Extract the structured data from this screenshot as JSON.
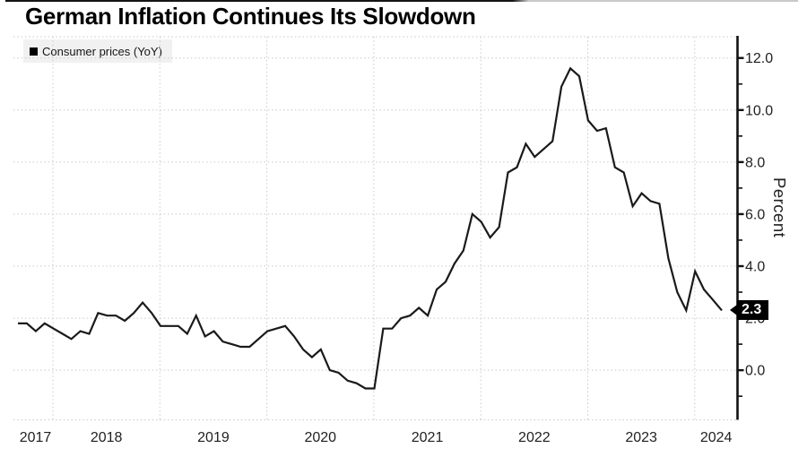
{
  "title": "German Inflation Continues Its Slowdown",
  "legend": {
    "label": "Consumer prices (YoY)",
    "swatch_color": "#000000"
  },
  "y_axis": {
    "title": "Percent",
    "tick_labels": [
      "0.0",
      "2.0",
      "4.0",
      "6.0",
      "8.0",
      "10.0",
      "12.0"
    ],
    "tick_values": [
      0,
      2,
      4,
      6,
      8,
      10,
      12
    ],
    "minor_tick_values": [
      -1,
      1,
      3,
      5,
      7,
      9,
      11
    ]
  },
  "x_axis": {
    "tick_labels": [
      "2017",
      "2018",
      "2019",
      "2020",
      "2021",
      "2022",
      "2023",
      "2024"
    ]
  },
  "flash_label": {
    "value": "2.3",
    "bg_color": "#000000",
    "text_color": "#ffffff"
  },
  "colors": {
    "line": "#1a1a1a",
    "grid": "#c9c9c9",
    "axis": "#111111",
    "label": "#1f1f1f",
    "legend_bg": "#f1f1f1"
  },
  "chart_data": {
    "type": "line",
    "title": "German Inflation Continues Its Slowdown",
    "series_name": "Consumer prices (YoY)",
    "ylabel": "Percent",
    "ylim": [
      -1.7,
      12.8
    ],
    "grid": "dotted",
    "legend_position": "top-left",
    "last_value_flag": 2.3,
    "x": [
      "2017-08",
      "2017-09",
      "2017-10",
      "2017-11",
      "2017-12",
      "2018-01",
      "2018-02",
      "2018-03",
      "2018-04",
      "2018-05",
      "2018-06",
      "2018-07",
      "2018-08",
      "2018-09",
      "2018-10",
      "2018-11",
      "2018-12",
      "2019-01",
      "2019-02",
      "2019-03",
      "2019-04",
      "2019-05",
      "2019-06",
      "2019-07",
      "2019-08",
      "2019-09",
      "2019-10",
      "2019-11",
      "2019-12",
      "2020-01",
      "2020-02",
      "2020-03",
      "2020-04",
      "2020-05",
      "2020-06",
      "2020-07",
      "2020-08",
      "2020-09",
      "2020-10",
      "2020-11",
      "2020-12",
      "2021-01",
      "2021-02",
      "2021-03",
      "2021-04",
      "2021-05",
      "2021-06",
      "2021-07",
      "2021-08",
      "2021-09",
      "2021-10",
      "2021-11",
      "2021-12",
      "2022-01",
      "2022-02",
      "2022-03",
      "2022-04",
      "2022-05",
      "2022-06",
      "2022-07",
      "2022-08",
      "2022-09",
      "2022-10",
      "2022-11",
      "2022-12",
      "2023-01",
      "2023-02",
      "2023-03",
      "2023-04",
      "2023-05",
      "2023-06",
      "2023-07",
      "2023-08",
      "2023-09",
      "2023-10",
      "2023-11",
      "2023-12",
      "2024-01",
      "2024-02",
      "2024-03"
    ],
    "values": [
      1.8,
      1.8,
      1.5,
      1.8,
      1.6,
      1.4,
      1.2,
      1.5,
      1.4,
      2.2,
      2.1,
      2.1,
      1.9,
      2.2,
      2.6,
      2.2,
      1.7,
      1.7,
      1.7,
      1.4,
      2.1,
      1.3,
      1.5,
      1.1,
      1.0,
      0.9,
      0.9,
      1.2,
      1.5,
      1.6,
      1.7,
      1.3,
      0.8,
      0.5,
      0.8,
      0.0,
      -0.1,
      -0.4,
      -0.5,
      -0.7,
      -0.7,
      1.6,
      1.6,
      2.0,
      2.1,
      2.4,
      2.1,
      3.1,
      3.4,
      4.1,
      4.6,
      6.0,
      5.7,
      5.1,
      5.5,
      7.6,
      7.8,
      8.7,
      8.2,
      8.5,
      8.8,
      10.9,
      11.6,
      11.3,
      9.6,
      9.2,
      9.3,
      7.8,
      7.6,
      6.3,
      6.8,
      6.5,
      6.4,
      4.3,
      3.0,
      2.3,
      3.8,
      3.1,
      2.7,
      2.3
    ]
  }
}
